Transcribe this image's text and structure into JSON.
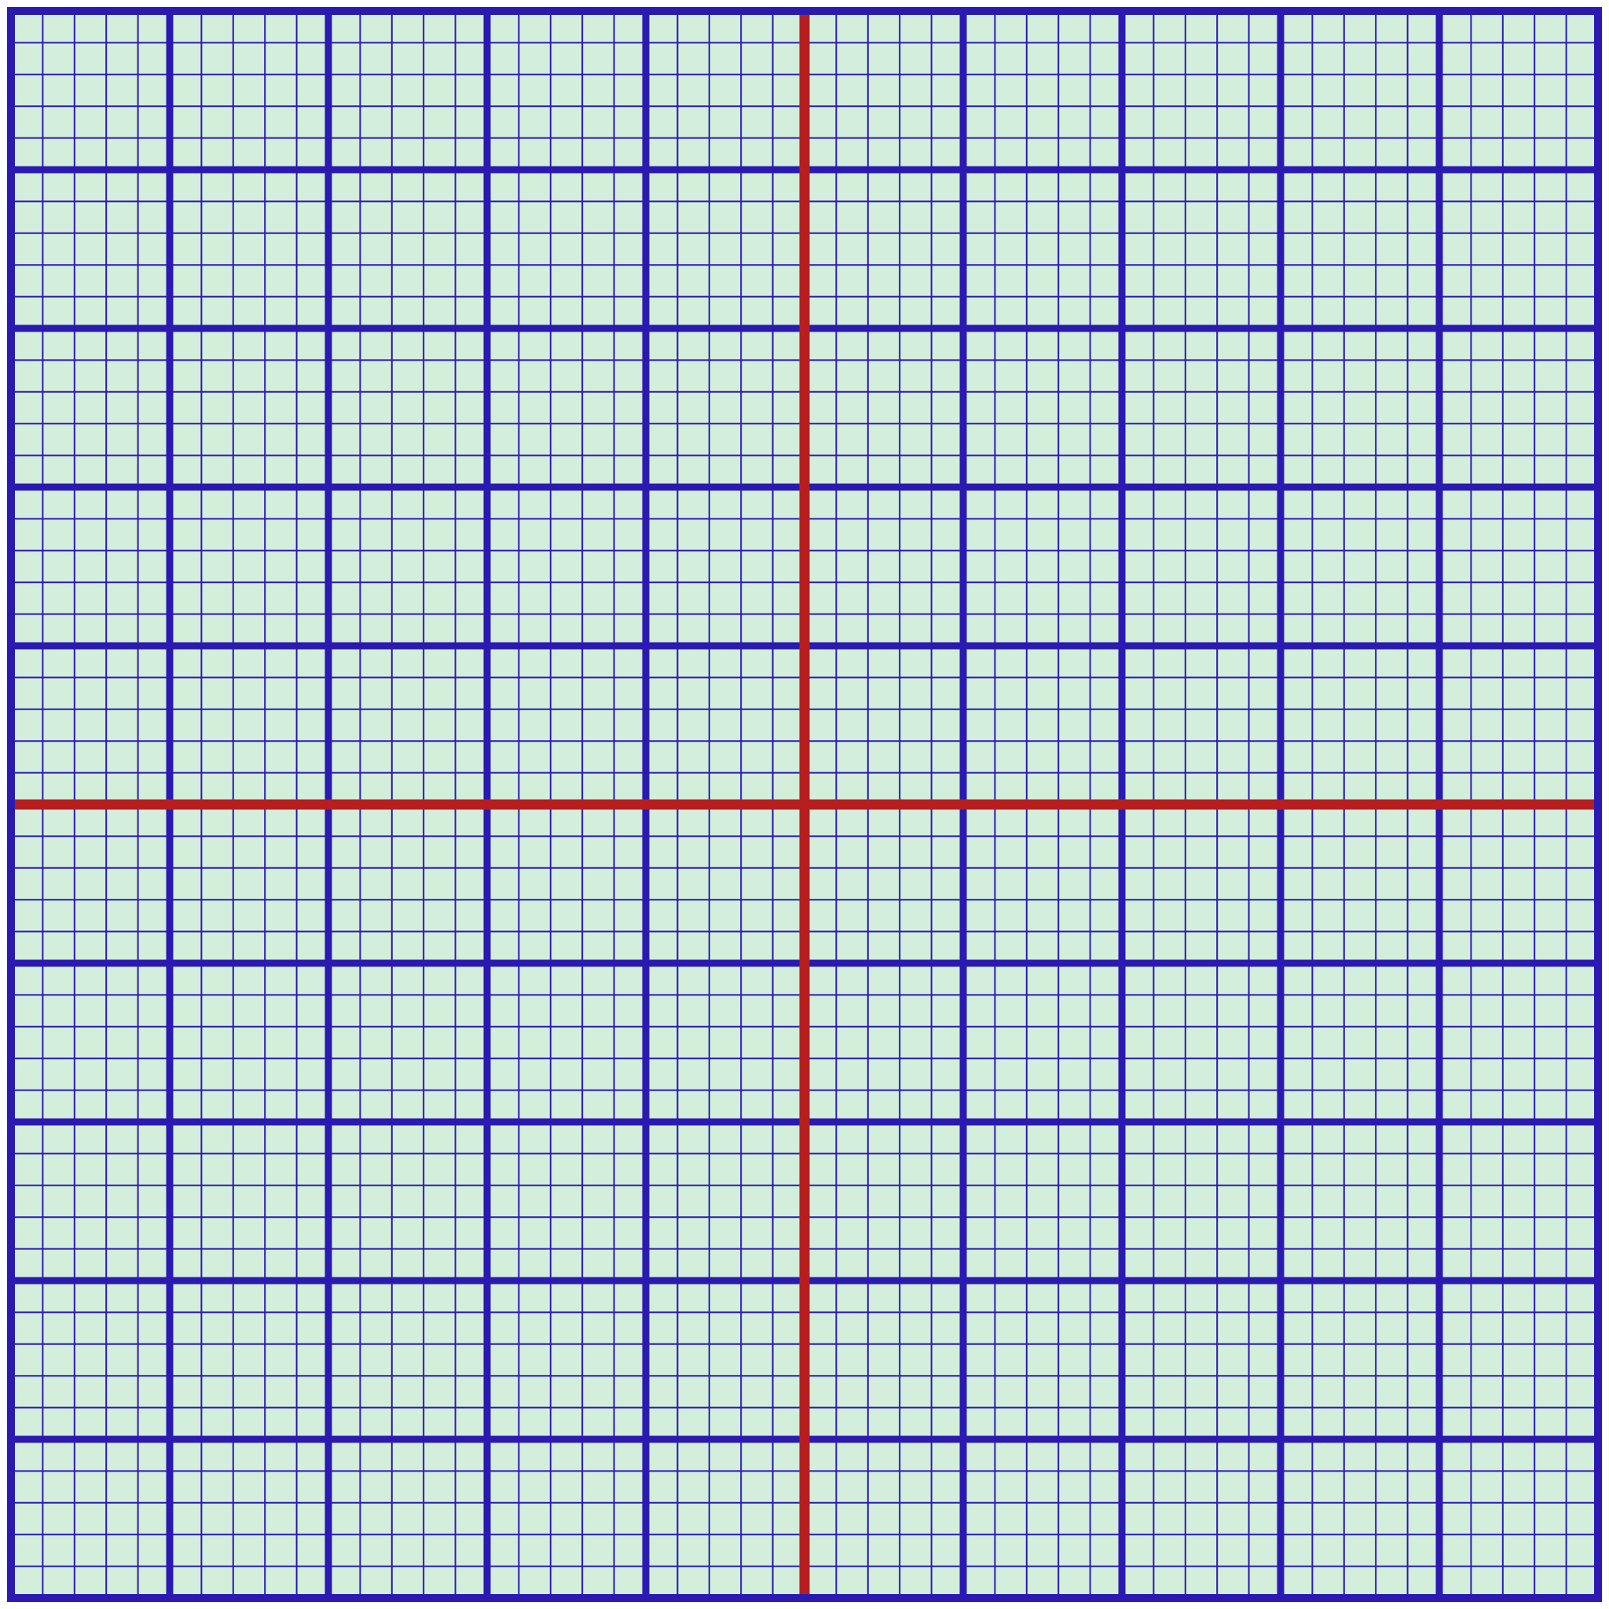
{
  "graph_paper": {
    "background_color": "#d3eedb",
    "grid_color": "#2a1ab2",
    "axis_color": "#b61f1f",
    "major_divisions": 10,
    "minor_per_major": 5
  }
}
